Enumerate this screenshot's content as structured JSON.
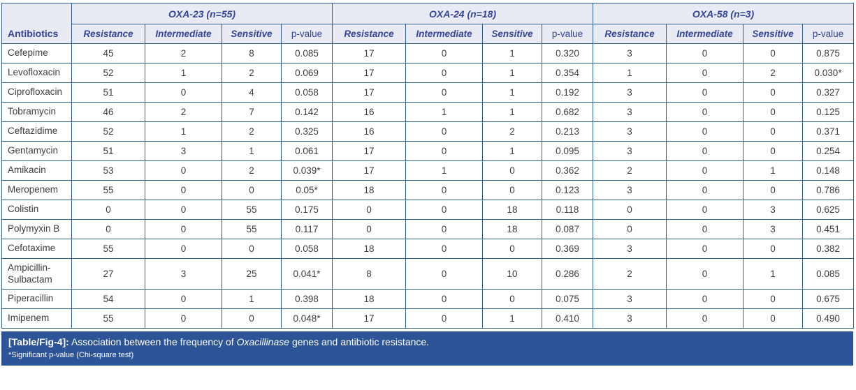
{
  "table": {
    "antibiotics_header": "Antibiotics",
    "groups": [
      {
        "label": "OXA-23 (n=55)"
      },
      {
        "label": "OXA-24 (n=18)"
      },
      {
        "label": "OXA-58 (n=3)"
      }
    ],
    "sub_headers": [
      "Resistance",
      "Intermediate",
      "Sensitive",
      "p-value"
    ],
    "rows": [
      {
        "name": "Cefepime",
        "oxa23": [
          "45",
          "2",
          "8",
          "0.085"
        ],
        "oxa24": [
          "17",
          "0",
          "1",
          "0.320"
        ],
        "oxa58": [
          "3",
          "0",
          "0",
          "0.875"
        ]
      },
      {
        "name": "Levofloxacin",
        "oxa23": [
          "52",
          "1",
          "2",
          "0.069"
        ],
        "oxa24": [
          "17",
          "0",
          "1",
          "0.354"
        ],
        "oxa58": [
          "1",
          "0",
          "2",
          "0.030*"
        ]
      },
      {
        "name": "Ciprofloxacin",
        "oxa23": [
          "51",
          "0",
          "4",
          "0.058"
        ],
        "oxa24": [
          "17",
          "0",
          "1",
          "0.192"
        ],
        "oxa58": [
          "3",
          "0",
          "0",
          "0.327"
        ]
      },
      {
        "name": "Tobramycin",
        "oxa23": [
          "46",
          "2",
          "7",
          "0.142"
        ],
        "oxa24": [
          "16",
          "1",
          "1",
          "0.682"
        ],
        "oxa58": [
          "3",
          "0",
          "0",
          "0.125"
        ]
      },
      {
        "name": "Ceftazidime",
        "oxa23": [
          "52",
          "1",
          "2",
          "0.325"
        ],
        "oxa24": [
          "16",
          "0",
          "2",
          "0.213"
        ],
        "oxa58": [
          "3",
          "0",
          "0",
          "0.371"
        ]
      },
      {
        "name": "Gentamycin",
        "oxa23": [
          "51",
          "3",
          "1",
          "0.061"
        ],
        "oxa24": [
          "17",
          "0",
          "1",
          "0.095"
        ],
        "oxa58": [
          "3",
          "0",
          "0",
          "0.254"
        ]
      },
      {
        "name": "Amikacin",
        "oxa23": [
          "53",
          "0",
          "2",
          "0.039*"
        ],
        "oxa24": [
          "17",
          "1",
          "0",
          "0.362"
        ],
        "oxa58": [
          "2",
          "0",
          "1",
          "0.148"
        ]
      },
      {
        "name": "Meropenem",
        "oxa23": [
          "55",
          "0",
          "0",
          "0.05*"
        ],
        "oxa24": [
          "18",
          "0",
          "0",
          "0.123"
        ],
        "oxa58": [
          "3",
          "0",
          "0",
          "0.786"
        ]
      },
      {
        "name": "Colistin",
        "oxa23": [
          "0",
          "0",
          "55",
          "0.175"
        ],
        "oxa24": [
          "0",
          "0",
          "18",
          "0.118"
        ],
        "oxa58": [
          "0",
          "0",
          "3",
          "0.625"
        ]
      },
      {
        "name": "Polymyxin B",
        "oxa23": [
          "0",
          "0",
          "55",
          "0.117"
        ],
        "oxa24": [
          "0",
          "0",
          "18",
          "0.087"
        ],
        "oxa58": [
          "0",
          "0",
          "3",
          "0.451"
        ]
      },
      {
        "name": "Cefotaxime",
        "oxa23": [
          "55",
          "0",
          "0",
          "0.058"
        ],
        "oxa24": [
          "18",
          "0",
          "0",
          "0.369"
        ],
        "oxa58": [
          "3",
          "0",
          "0",
          "0.382"
        ]
      },
      {
        "name": "Ampicillin-Sulbactam",
        "oxa23": [
          "27",
          "3",
          "25",
          "0.041*"
        ],
        "oxa24": [
          "8",
          "0",
          "10",
          "0.286"
        ],
        "oxa58": [
          "2",
          "0",
          "1",
          "0.085"
        ]
      },
      {
        "name": "Piperacillin",
        "oxa23": [
          "54",
          "0",
          "1",
          "0.398"
        ],
        "oxa24": [
          "18",
          "0",
          "0",
          "0.075"
        ],
        "oxa58": [
          "3",
          "0",
          "0",
          "0.675"
        ]
      },
      {
        "name": "Imipenem",
        "oxa23": [
          "55",
          "0",
          "0",
          "0.048*"
        ],
        "oxa24": [
          "17",
          "0",
          "1",
          "0.410"
        ],
        "oxa58": [
          "3",
          "0",
          "0",
          "0.490"
        ]
      }
    ]
  },
  "footer": {
    "caption_label": "[Table/Fig-4]:",
    "caption_before": "Association between the frequency of",
    "caption_italic": "Oxacillinase",
    "caption_after": "genes and antibiotic resistance.",
    "note": "*Significant p-value (Chi-square test)"
  },
  "colors": {
    "header_bg": "#e9ebf4",
    "header_text": "#33449b",
    "grid_border": "#2e5f99",
    "body_text": "#3d3d3d",
    "caption_bg": "#2d5496",
    "caption_text": "#ffffff"
  }
}
